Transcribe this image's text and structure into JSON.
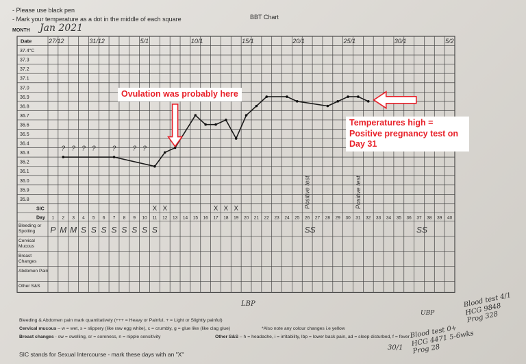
{
  "header": {
    "instruction_1": "- Please use black pen",
    "instruction_2": "- Mark your temperature as a dot in the middle of each square",
    "title": "BBT Chart",
    "month_label": "MONTH",
    "month_value": "Jan 2021"
  },
  "grid": {
    "date_label": "Date",
    "dates": [
      "27/12",
      "31/12",
      "5/1",
      "10/1",
      "15/1",
      "20/1",
      "25/1",
      "30/1",
      "5/2"
    ],
    "temperatures": [
      "37.4°C",
      "37.3",
      "37.2",
      "37.1",
      "37.0",
      "36.9",
      "36.8",
      "36.7",
      "36.6",
      "36.5",
      "36.4",
      "36.3",
      "36.2",
      "36.1",
      "36.0",
      "35.9",
      "35.8"
    ],
    "sic_label": "SIC",
    "day_label": "Day",
    "days": [
      "1",
      "2",
      "3",
      "4",
      "5",
      "6",
      "7",
      "8",
      "9",
      "10",
      "11",
      "12",
      "13",
      "14",
      "15",
      "16",
      "17",
      "18",
      "19",
      "20",
      "21",
      "22",
      "23",
      "24",
      "25",
      "26",
      "27",
      "28",
      "29",
      "30",
      "31",
      "32",
      "33",
      "34",
      "35",
      "36",
      "37",
      "38",
      "39",
      "40"
    ],
    "row_labels": [
      "Bleeding or Spotting",
      "Cervical Mucous",
      "Breast Changes",
      "Abdomen Pain",
      "Other S&S"
    ]
  },
  "chart_data": {
    "type": "line",
    "xlabel": "Day",
    "ylabel": "",
    "ylim": [
      35.8,
      37.4
    ],
    "x": [
      2,
      7,
      11,
      12,
      13,
      15,
      16,
      17,
      18,
      19,
      20,
      21,
      22,
      24,
      25,
      28,
      29,
      30,
      31,
      32
    ],
    "series": [
      {
        "values": [
          36.25,
          36.25,
          36.15,
          36.3,
          36.35,
          36.7,
          36.6,
          36.6,
          36.65,
          36.45,
          36.7,
          36.8,
          36.9,
          36.9,
          36.85,
          36.8,
          36.85,
          36.9,
          36.9,
          36.85
        ]
      }
    ]
  },
  "annotations": {
    "question_marks": [
      "?",
      "?",
      "?",
      "?",
      "?",
      "?",
      "?"
    ],
    "bleeding_marks": [
      "P",
      "M",
      "M",
      "S",
      "S",
      "S",
      "S",
      "S",
      "S",
      "S",
      "S"
    ],
    "day37_marks": "SS",
    "day26_marks": "SS",
    "sic_marks": [
      "X",
      "X",
      "X",
      "X",
      "X"
    ],
    "vertical_note_1": "Positive test",
    "vertical_note_2": "Positive test"
  },
  "callouts": {
    "ovulation": "Ovulation was probably here",
    "temps_high_1": "Temperatures high =",
    "temps_high_2": "Positive pregnancy test on",
    "temps_high_3": "Day 31"
  },
  "handwriting": {
    "blood_test_1": "Blood test 4/1",
    "blood_test_2": "HCG 9848",
    "blood_test_3": "Prog 328",
    "blood_test_b1": "Blood test 0+",
    "blood_test_b2": "HCG 4471 5-6wks",
    "blood_test_b3": "Prog 28",
    "date_301": "30/1",
    "lbp": "LBP",
    "ubp": "UBP"
  },
  "legend": {
    "line_1": "Bleeding & Abdomen pain mark quantitatively (+++ = Heavy or Painful, + = Light or Slightly painful)",
    "line_2a": "Cervical mucous",
    "line_2b": " – w = wet, s = slippery (like raw egg white), c = crumbly, g = glue like (like clag glue)",
    "line_2c": "*Also note any colour changes i.e yellow",
    "line_3a": "Breast changes",
    "line_3b": " - sw = swelling, sr = soreness, n = nipple sensitivity",
    "line_3c": "Other S&S",
    "line_3d": " – h = headache, i = irritability, lbp = lower back pain, ad = sleep disturbed, f = fever",
    "footer": "SIC stands for Sexual Intercourse - mark these days with an \"X\""
  }
}
